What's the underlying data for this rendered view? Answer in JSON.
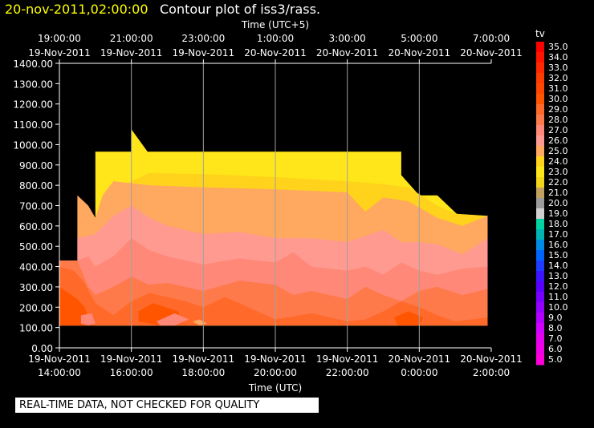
{
  "header": {
    "timestamp": "20-nov-2011,02:00:00",
    "title": "Contour plot of iss3/rass."
  },
  "footer_note": "REAL-TIME DATA, NOT CHECKED FOR QUALITY",
  "colors": {
    "background": "#000000",
    "timestamp": "#ffff00",
    "grid": "#a0a0a0",
    "plot_fill": "#000000"
  },
  "chart_data": {
    "type": "heatmap",
    "title": "Contour plot of iss3/rass.",
    "xlabel": "Time (UTC)",
    "xlabel_top": "Time (UTC+5)",
    "ylabel": "",
    "x_unit": "hours since 19-Nov-2011 14:00 UTC",
    "xlim": [
      0,
      12
    ],
    "ylim": [
      0,
      1400
    ],
    "grid": true,
    "bottom_ticks": [
      {
        "x": 0,
        "line1": "19-Nov-2011",
        "line2": "14:00:00"
      },
      {
        "x": 2,
        "line1": "19-Nov-2011",
        "line2": "16:00:00"
      },
      {
        "x": 4,
        "line1": "19-Nov-2011",
        "line2": "18:00:00"
      },
      {
        "x": 6,
        "line1": "19-Nov-2011",
        "line2": "20:00:00"
      },
      {
        "x": 8,
        "line1": "19-Nov-2011",
        "line2": "22:00:00"
      },
      {
        "x": 10,
        "line1": "20-Nov-2011",
        "line2": "0:00:00"
      },
      {
        "x": 12,
        "line1": "20-Nov-2011",
        "line2": "2:00:00"
      }
    ],
    "top_ticks": [
      {
        "x": 0,
        "line1": "19:00:00",
        "line2": "19-Nov-2011"
      },
      {
        "x": 2,
        "line1": "21:00:00",
        "line2": "19-Nov-2011"
      },
      {
        "x": 4,
        "line1": "23:00:00",
        "line2": "19-Nov-2011"
      },
      {
        "x": 6,
        "line1": "1:00:00",
        "line2": "20-Nov-2011"
      },
      {
        "x": 8,
        "line1": "3:00:00",
        "line2": "20-Nov-2011"
      },
      {
        "x": 10,
        "line1": "5:00:00",
        "line2": "20-Nov-2011"
      },
      {
        "x": 12,
        "line1": "7:00:00",
        "line2": "20-Nov-2011"
      }
    ],
    "y_ticks": [
      0,
      100,
      200,
      300,
      400,
      500,
      600,
      700,
      800,
      900,
      1000,
      1100,
      1200,
      1300,
      1400
    ],
    "y_tick_labels": [
      "0.00",
      "100.00",
      "200.00",
      "300.00",
      "400.00",
      "500.00",
      "600.00",
      "700.00",
      "800.00",
      "900.00",
      "1000.00",
      "1100.00",
      "1200.00",
      "1300.00",
      "1400.00"
    ],
    "colorbar": {
      "label": "tv",
      "levels": [
        {
          "value": "35.0",
          "color": "#ff0000"
        },
        {
          "value": "34.0",
          "color": "#ff1400"
        },
        {
          "value": "33.0",
          "color": "#ff2800"
        },
        {
          "value": "32.0",
          "color": "#ff3c00"
        },
        {
          "value": "31.0",
          "color": "#ff4600"
        },
        {
          "value": "30.0",
          "color": "#ff5500"
        },
        {
          "value": "29.0",
          "color": "#ff6a2a"
        },
        {
          "value": "28.0",
          "color": "#ff7a4a"
        },
        {
          "value": "27.0",
          "color": "#ff8878"
        },
        {
          "value": "26.0",
          "color": "#ff9a90"
        },
        {
          "value": "25.0",
          "color": "#ffa860"
        },
        {
          "value": "24.0",
          "color": "#ffd21c"
        },
        {
          "value": "23.0",
          "color": "#ffe61a"
        },
        {
          "value": "22.0",
          "color": "#f2d41a"
        },
        {
          "value": "21.0",
          "color": "#c2a060"
        },
        {
          "value": "20.0",
          "color": "#9a9a9a"
        },
        {
          "value": "19.0",
          "color": "#cfcfcf"
        },
        {
          "value": "18.0",
          "color": "#00d2a0"
        },
        {
          "value": "17.0",
          "color": "#00b4b4"
        },
        {
          "value": "16.0",
          "color": "#008ce6"
        },
        {
          "value": "15.0",
          "color": "#0064ff"
        },
        {
          "value": "14.0",
          "color": "#1e3cff"
        },
        {
          "value": "13.0",
          "color": "#3c14ff"
        },
        {
          "value": "12.0",
          "color": "#5a00ff"
        },
        {
          "value": "11.0",
          "color": "#7800ff"
        },
        {
          "value": "10.0",
          "color": "#9600ff"
        },
        {
          "value": "9.0",
          "color": "#b400ff"
        },
        {
          "value": "8.0",
          "color": "#d200ff"
        },
        {
          "value": "7.0",
          "color": "#e600f0"
        },
        {
          "value": "6.0",
          "color": "#f000e6"
        },
        {
          "value": "5.0",
          "color": "#ff00dc"
        }
      ]
    },
    "regions": [
      {
        "tv": 23,
        "color": "#ffe61a",
        "polygon": [
          [
            1.0,
            110
          ],
          [
            1.0,
            965
          ],
          [
            2.0,
            965
          ],
          [
            2.0,
            1075
          ],
          [
            2.45,
            965
          ],
          [
            9.5,
            965
          ],
          [
            9.5,
            850
          ],
          [
            10.0,
            750
          ],
          [
            10.5,
            750
          ],
          [
            11.1,
            650
          ],
          [
            11.9,
            650
          ],
          [
            11.9,
            110
          ]
        ]
      },
      {
        "tv": 24,
        "color": "#ffd21c",
        "polygon": [
          [
            1.0,
            640
          ],
          [
            1.5,
            780
          ],
          [
            2.5,
            860
          ],
          [
            4.0,
            855
          ],
          [
            6.0,
            840
          ],
          [
            8.0,
            820
          ],
          [
            9.0,
            805
          ],
          [
            9.7,
            790
          ],
          [
            10.5,
            700
          ],
          [
            11.0,
            660
          ],
          [
            11.9,
            650
          ],
          [
            11.9,
            110
          ],
          [
            1.0,
            110
          ]
        ]
      },
      {
        "tv": 25,
        "color": "#ffa860",
        "polygon": [
          [
            0.5,
            750
          ],
          [
            0.8,
            700
          ],
          [
            1.0,
            640
          ],
          [
            1.2,
            750
          ],
          [
            1.5,
            820
          ],
          [
            2.5,
            800
          ],
          [
            4.0,
            790
          ],
          [
            6.0,
            780
          ],
          [
            8.0,
            765
          ],
          [
            8.5,
            670
          ],
          [
            9.0,
            740
          ],
          [
            9.7,
            720
          ],
          [
            10.5,
            640
          ],
          [
            11.2,
            600
          ],
          [
            11.9,
            650
          ],
          [
            11.9,
            110
          ],
          [
            0,
            110
          ],
          [
            0,
            430
          ],
          [
            0.5,
            430
          ]
        ]
      },
      {
        "tv": 26,
        "color": "#ff9a90",
        "polygon": [
          [
            0.5,
            540
          ],
          [
            1.0,
            560
          ],
          [
            1.5,
            650
          ],
          [
            2.0,
            700
          ],
          [
            2.5,
            640
          ],
          [
            3.0,
            600
          ],
          [
            4.0,
            560
          ],
          [
            5.0,
            570
          ],
          [
            6.0,
            540
          ],
          [
            7.0,
            540
          ],
          [
            8.0,
            520
          ],
          [
            9.0,
            580
          ],
          [
            9.5,
            520
          ],
          [
            10.0,
            520
          ],
          [
            10.5,
            510
          ],
          [
            11.2,
            460
          ],
          [
            11.9,
            540
          ],
          [
            11.9,
            110
          ],
          [
            0,
            110
          ],
          [
            0,
            430
          ],
          [
            0.5,
            430
          ]
        ]
      },
      {
        "tv": 27,
        "color": "#ff8878",
        "polygon": [
          [
            0,
            430
          ],
          [
            0.5,
            430
          ],
          [
            0.8,
            450
          ],
          [
            1.0,
            400
          ],
          [
            1.5,
            450
          ],
          [
            2.0,
            540
          ],
          [
            2.5,
            480
          ],
          [
            3.0,
            450
          ],
          [
            4.0,
            410
          ],
          [
            5.0,
            440
          ],
          [
            6.0,
            420
          ],
          [
            6.5,
            470
          ],
          [
            7.0,
            400
          ],
          [
            8.0,
            380
          ],
          [
            8.5,
            400
          ],
          [
            9.0,
            360
          ],
          [
            9.5,
            420
          ],
          [
            10.0,
            380
          ],
          [
            10.5,
            360
          ],
          [
            11.2,
            390
          ],
          [
            11.9,
            400
          ],
          [
            11.9,
            110
          ],
          [
            0,
            110
          ]
        ]
      },
      {
        "tv": 28,
        "color": "#ff7a4a",
        "polygon": [
          [
            0,
            430
          ],
          [
            0.5,
            430
          ],
          [
            0.8,
            300
          ],
          [
            1.0,
            260
          ],
          [
            1.5,
            300
          ],
          [
            2.0,
            350
          ],
          [
            2.5,
            310
          ],
          [
            3.0,
            320
          ],
          [
            4.0,
            280
          ],
          [
            5.0,
            330
          ],
          [
            6.0,
            310
          ],
          [
            6.5,
            260
          ],
          [
            7.0,
            280
          ],
          [
            8.0,
            240
          ],
          [
            8.5,
            300
          ],
          [
            9.0,
            260
          ],
          [
            9.5,
            230
          ],
          [
            10.0,
            280
          ],
          [
            10.5,
            300
          ],
          [
            11.2,
            260
          ],
          [
            11.9,
            290
          ],
          [
            11.9,
            110
          ],
          [
            0,
            110
          ]
        ]
      },
      {
        "tv": 29,
        "color": "#ff6a2a",
        "polygon": [
          [
            0,
            400
          ],
          [
            0.4,
            380
          ],
          [
            0.7,
            320
          ],
          [
            1.0,
            220
          ],
          [
            1.5,
            160
          ],
          [
            2.0,
            230
          ],
          [
            2.5,
            270
          ],
          [
            3.0,
            250
          ],
          [
            3.5,
            230
          ],
          [
            4.0,
            200
          ],
          [
            4.6,
            250
          ],
          [
            5.0,
            220
          ],
          [
            6.0,
            140
          ],
          [
            7.0,
            170
          ],
          [
            8.0,
            130
          ],
          [
            8.5,
            140
          ],
          [
            9.0,
            180
          ],
          [
            9.5,
            230
          ],
          [
            10.0,
            200
          ],
          [
            10.5,
            160
          ],
          [
            11.0,
            130
          ],
          [
            11.9,
            150
          ],
          [
            11.9,
            110
          ],
          [
            0,
            110
          ]
        ]
      },
      {
        "tv": 30,
        "color": "#ff5500",
        "polygon": [
          [
            0,
            300
          ],
          [
            0.5,
            240
          ],
          [
            0.7,
            200
          ],
          [
            0.9,
            110
          ],
          [
            0,
            110
          ]
        ]
      },
      {
        "tv": 30,
        "color": "#ff5500",
        "polygon": [
          [
            2.2,
            180
          ],
          [
            2.6,
            220
          ],
          [
            3.3,
            180
          ],
          [
            3.4,
            120
          ],
          [
            2.8,
            110
          ],
          [
            2.2,
            130
          ]
        ]
      },
      {
        "tv": 30,
        "color": "#ff5500",
        "polygon": [
          [
            9.3,
            150
          ],
          [
            9.7,
            180
          ],
          [
            10.1,
            150
          ],
          [
            10.0,
            110
          ],
          [
            9.4,
            110
          ]
        ]
      },
      {
        "tv": 27,
        "color": "#ff8878",
        "polygon": [
          [
            0.6,
            160
          ],
          [
            0.9,
            170
          ],
          [
            1.0,
            120
          ],
          [
            0.8,
            110
          ],
          [
            0.6,
            120
          ]
        ]
      },
      {
        "tv": 27,
        "color": "#ff8878",
        "polygon": [
          [
            2.7,
            130
          ],
          [
            3.2,
            170
          ],
          [
            3.6,
            140
          ],
          [
            3.2,
            110
          ],
          [
            2.8,
            110
          ]
        ]
      },
      {
        "tv": 25,
        "color": "#ffa860",
        "polygon": [
          [
            3.7,
            130
          ],
          [
            3.9,
            140
          ],
          [
            4.1,
            120
          ],
          [
            3.9,
            110
          ]
        ]
      }
    ]
  }
}
